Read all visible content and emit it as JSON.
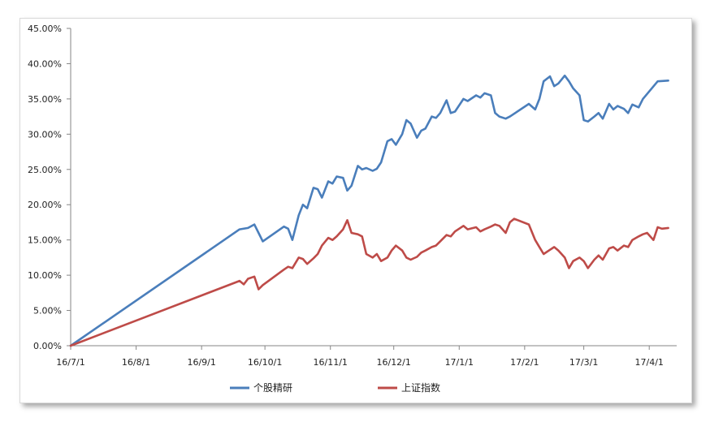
{
  "chart_data": {
    "type": "line",
    "title": "",
    "xlabel": "",
    "ylabel": "",
    "x_ticks": [
      "16/7/1",
      "16/8/1",
      "16/9/1",
      "16/10/1",
      "16/11/1",
      "16/12/1",
      "17/1/1",
      "17/2/1",
      "17/3/1",
      "17/4/1"
    ],
    "y_ticks": [
      "0.00%",
      "5.00%",
      "10.00%",
      "15.00%",
      "20.00%",
      "25.00%",
      "30.00%",
      "35.00%",
      "40.00%",
      "45.00%"
    ],
    "ylim": [
      0,
      45
    ],
    "xlim": [
      "2016-07-01",
      "2017-04-14"
    ],
    "grid": false,
    "legend_position": "bottom",
    "series": [
      {
        "name": "个股精研",
        "color": "#4a7ebb",
        "points": [
          [
            "2016-07-01",
            0.0
          ],
          [
            "2016-09-19",
            16.5
          ],
          [
            "2016-09-23",
            16.7
          ],
          [
            "2016-09-26",
            17.2
          ],
          [
            "2016-09-28",
            16.0
          ],
          [
            "2016-09-30",
            14.8
          ],
          [
            "2016-10-10",
            16.9
          ],
          [
            "2016-10-12",
            16.6
          ],
          [
            "2016-10-14",
            15.0
          ],
          [
            "2016-10-17",
            18.5
          ],
          [
            "2016-10-19",
            20.0
          ],
          [
            "2016-10-21",
            19.5
          ],
          [
            "2016-10-24",
            22.4
          ],
          [
            "2016-10-26",
            22.2
          ],
          [
            "2016-10-28",
            21.0
          ],
          [
            "2016-10-31",
            23.3
          ],
          [
            "2016-11-02",
            23.0
          ],
          [
            "2016-11-04",
            24.0
          ],
          [
            "2016-11-07",
            23.8
          ],
          [
            "2016-11-09",
            22.0
          ],
          [
            "2016-11-11",
            22.7
          ],
          [
            "2016-11-14",
            25.5
          ],
          [
            "2016-11-16",
            25.0
          ],
          [
            "2016-11-18",
            25.2
          ],
          [
            "2016-11-21",
            24.8
          ],
          [
            "2016-11-23",
            25.1
          ],
          [
            "2016-11-25",
            26.0
          ],
          [
            "2016-11-28",
            29.0
          ],
          [
            "2016-11-30",
            29.3
          ],
          [
            "2016-12-02",
            28.5
          ],
          [
            "2016-12-05",
            30.0
          ],
          [
            "2016-12-07",
            32.0
          ],
          [
            "2016-12-09",
            31.5
          ],
          [
            "2016-12-12",
            29.5
          ],
          [
            "2016-12-14",
            30.5
          ],
          [
            "2016-12-16",
            30.8
          ],
          [
            "2016-12-19",
            32.5
          ],
          [
            "2016-12-21",
            32.3
          ],
          [
            "2016-12-23",
            33.0
          ],
          [
            "2016-12-26",
            34.8
          ],
          [
            "2016-12-28",
            33.0
          ],
          [
            "2016-12-30",
            33.2
          ],
          [
            "2017-01-03",
            35.0
          ],
          [
            "2017-01-05",
            34.7
          ],
          [
            "2017-01-09",
            35.5
          ],
          [
            "2017-01-11",
            35.2
          ],
          [
            "2017-01-13",
            35.8
          ],
          [
            "2017-01-16",
            35.5
          ],
          [
            "2017-01-18",
            33.0
          ],
          [
            "2017-01-20",
            32.5
          ],
          [
            "2017-01-23",
            32.2
          ],
          [
            "2017-01-25",
            32.5
          ],
          [
            "2017-02-03",
            34.3
          ],
          [
            "2017-02-06",
            33.5
          ],
          [
            "2017-02-08",
            35.0
          ],
          [
            "2017-02-10",
            37.5
          ],
          [
            "2017-02-13",
            38.2
          ],
          [
            "2017-02-15",
            36.8
          ],
          [
            "2017-02-17",
            37.2
          ],
          [
            "2017-02-20",
            38.3
          ],
          [
            "2017-02-22",
            37.5
          ],
          [
            "2017-02-24",
            36.5
          ],
          [
            "2017-02-27",
            35.5
          ],
          [
            "2017-03-01",
            32.0
          ],
          [
            "2017-03-03",
            31.8
          ],
          [
            "2017-03-06",
            32.5
          ],
          [
            "2017-03-08",
            33.0
          ],
          [
            "2017-03-10",
            32.2
          ],
          [
            "2017-03-13",
            34.3
          ],
          [
            "2017-03-15",
            33.5
          ],
          [
            "2017-03-17",
            34.0
          ],
          [
            "2017-03-20",
            33.6
          ],
          [
            "2017-03-22",
            33.0
          ],
          [
            "2017-03-24",
            34.2
          ],
          [
            "2017-03-27",
            33.8
          ],
          [
            "2017-03-29",
            35.0
          ],
          [
            "2017-04-05",
            37.5
          ],
          [
            "2017-04-10",
            37.6
          ]
        ]
      },
      {
        "name": "上证指数",
        "color": "#be4b48",
        "points": [
          [
            "2016-07-01",
            0.0
          ],
          [
            "2016-09-19",
            9.2
          ],
          [
            "2016-09-21",
            8.7
          ],
          [
            "2016-09-23",
            9.5
          ],
          [
            "2016-09-26",
            9.8
          ],
          [
            "2016-09-28",
            8.0
          ],
          [
            "2016-09-30",
            8.6
          ],
          [
            "2016-10-10",
            10.8
          ],
          [
            "2016-10-12",
            11.2
          ],
          [
            "2016-10-14",
            11.0
          ],
          [
            "2016-10-17",
            12.5
          ],
          [
            "2016-10-19",
            12.3
          ],
          [
            "2016-10-21",
            11.6
          ],
          [
            "2016-10-24",
            12.4
          ],
          [
            "2016-10-26",
            13.0
          ],
          [
            "2016-10-28",
            14.2
          ],
          [
            "2016-10-31",
            15.3
          ],
          [
            "2016-11-02",
            15.0
          ],
          [
            "2016-11-04",
            15.5
          ],
          [
            "2016-11-07",
            16.5
          ],
          [
            "2016-11-09",
            17.8
          ],
          [
            "2016-11-11",
            16.0
          ],
          [
            "2016-11-14",
            15.8
          ],
          [
            "2016-11-16",
            15.5
          ],
          [
            "2016-11-18",
            13.0
          ],
          [
            "2016-11-21",
            12.5
          ],
          [
            "2016-11-23",
            13.0
          ],
          [
            "2016-11-25",
            12.0
          ],
          [
            "2016-11-28",
            12.5
          ],
          [
            "2016-11-30",
            13.5
          ],
          [
            "2016-12-02",
            14.2
          ],
          [
            "2016-12-05",
            13.5
          ],
          [
            "2016-12-07",
            12.5
          ],
          [
            "2016-12-09",
            12.2
          ],
          [
            "2016-12-12",
            12.6
          ],
          [
            "2016-12-14",
            13.2
          ],
          [
            "2016-12-16",
            13.5
          ],
          [
            "2016-12-19",
            14.0
          ],
          [
            "2016-12-21",
            14.2
          ],
          [
            "2016-12-23",
            14.8
          ],
          [
            "2016-12-26",
            15.7
          ],
          [
            "2016-12-28",
            15.5
          ],
          [
            "2016-12-30",
            16.2
          ],
          [
            "2017-01-03",
            17.0
          ],
          [
            "2017-01-05",
            16.5
          ],
          [
            "2017-01-09",
            16.8
          ],
          [
            "2017-01-11",
            16.2
          ],
          [
            "2017-01-13",
            16.5
          ],
          [
            "2017-01-16",
            16.9
          ],
          [
            "2017-01-18",
            17.2
          ],
          [
            "2017-01-20",
            17.0
          ],
          [
            "2017-01-23",
            16.0
          ],
          [
            "2017-01-25",
            17.5
          ],
          [
            "2017-01-27",
            18.0
          ],
          [
            "2017-02-03",
            17.2
          ],
          [
            "2017-02-06",
            15.0
          ],
          [
            "2017-02-08",
            14.0
          ],
          [
            "2017-02-10",
            13.0
          ],
          [
            "2017-02-13",
            13.6
          ],
          [
            "2017-02-15",
            14.0
          ],
          [
            "2017-02-17",
            13.5
          ],
          [
            "2017-02-20",
            12.5
          ],
          [
            "2017-02-22",
            11.0
          ],
          [
            "2017-02-24",
            12.0
          ],
          [
            "2017-02-27",
            12.5
          ],
          [
            "2017-03-01",
            12.0
          ],
          [
            "2017-03-03",
            11.0
          ],
          [
            "2017-03-06",
            12.2
          ],
          [
            "2017-03-08",
            12.8
          ],
          [
            "2017-03-10",
            12.2
          ],
          [
            "2017-03-13",
            13.8
          ],
          [
            "2017-03-15",
            14.0
          ],
          [
            "2017-03-17",
            13.5
          ],
          [
            "2017-03-20",
            14.2
          ],
          [
            "2017-03-22",
            14.0
          ],
          [
            "2017-03-24",
            15.0
          ],
          [
            "2017-03-27",
            15.5
          ],
          [
            "2017-03-29",
            15.8
          ],
          [
            "2017-03-31",
            16.0
          ],
          [
            "2017-04-03",
            15.0
          ],
          [
            "2017-04-05",
            16.8
          ],
          [
            "2017-04-07",
            16.6
          ],
          [
            "2017-04-10",
            16.7
          ]
        ]
      }
    ]
  }
}
